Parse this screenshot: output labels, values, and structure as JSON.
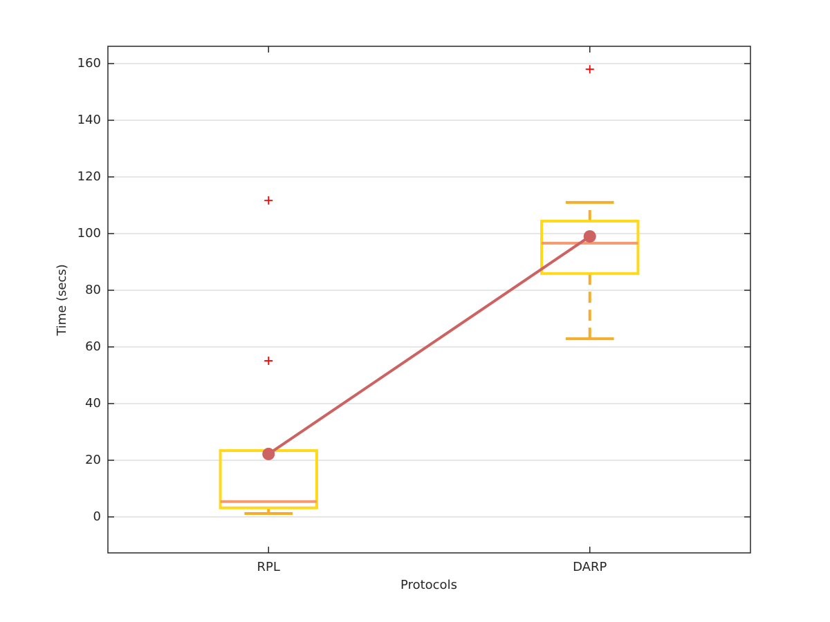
{
  "chart_data": {
    "type": "box",
    "x_label": "Protocols",
    "y_label": "Time (secs)",
    "categories": [
      "RPL",
      "DARP"
    ],
    "boxes": [
      {
        "whislo": 1.2,
        "q1": 3.2,
        "median": 5.4,
        "q3": 23.4,
        "whishi": 23.4,
        "fliers": [
          55.1,
          111.7
        ]
      },
      {
        "whislo": 62.9,
        "q1": 85.9,
        "median": 96.6,
        "q3": 104.4,
        "whishi": 111.0,
        "fliers": [
          158.0
        ]
      }
    ],
    "means": [
      22.2,
      99.0
    ],
    "box_color": "#ffd91a",
    "median_color": "#f59a6e",
    "whisker_color": "#f5ad2a",
    "flier_color": "#ff0000",
    "mean_color": "#cd6262",
    "ylim": [
      -12.7,
      166.1
    ],
    "yticks": [
      0,
      20,
      40,
      60,
      80,
      100,
      120,
      140,
      160
    ],
    "grid": true
  }
}
